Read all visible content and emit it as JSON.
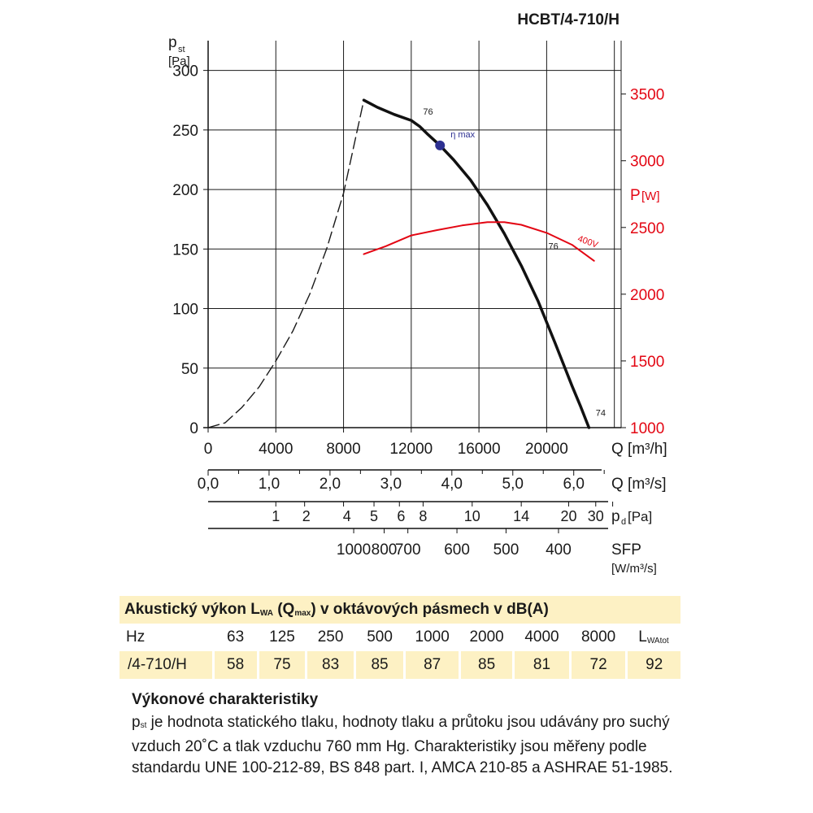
{
  "chart_data": {
    "type": "line",
    "title": "HCBT/4-710/H",
    "y_axis_left": {
      "label_main": "p",
      "label_sub": "st",
      "unit": "[Pa]",
      "ylim": [
        0,
        325
      ],
      "ticks": [
        0,
        50,
        100,
        150,
        200,
        250,
        300
      ],
      "tick_labels": [
        "0",
        "50",
        "100",
        "150",
        "200",
        "250",
        "300"
      ]
    },
    "y_axis_right": {
      "label_main": "P",
      "unit": "[W]",
      "color": "#e30613",
      "ylim": [
        1000,
        3900
      ],
      "ticks": [
        1000,
        1500,
        2000,
        2500,
        3000,
        3500
      ],
      "tick_labels": [
        "1000",
        "1500",
        "2000",
        "2500",
        "3000",
        "3500"
      ]
    },
    "x_axis": {
      "label": "Q [m³/h]",
      "xlim": [
        0,
        24400
      ],
      "ticks": [
        0,
        4000,
        8000,
        12000,
        16000,
        20000
      ],
      "tick_labels": [
        "0",
        "4000",
        "8000",
        "12000",
        "16000",
        "20000"
      ],
      "grid_lines": [
        0,
        4000,
        8000,
        12000,
        16000,
        20000,
        24000
      ]
    },
    "secondary_x_scales": [
      {
        "label": "Q [m³/s]",
        "ticks": [
          0,
          3600,
          7200,
          10800,
          14400,
          18000,
          21600
        ],
        "tick_labels": [
          "0,0",
          "1,0",
          "2,0",
          "3,0",
          "4,0",
          "5,0",
          "6,0"
        ],
        "minor_ticks": [
          1800,
          5400,
          9000,
          12600,
          16200,
          19800,
          23400
        ]
      },
      {
        "label": "p",
        "label_sub": "d",
        "unit": "[Pa]",
        "ticks": [
          4000,
          5700,
          8000,
          9800,
          11300,
          12700,
          15600,
          18500,
          21300,
          22900,
          23900
        ],
        "tick_labels": [
          "1",
          "2",
          "4",
          "5",
          "6",
          "8",
          "10",
          "14",
          "20",
          "30",
          ""
        ],
        "label_positions": [
          4000,
          5800,
          8200,
          9800,
          11400,
          12700,
          15600,
          18500,
          21300,
          22900
        ]
      },
      {
        "label": "SFP",
        "unit": "[W/m³/s]",
        "ticks": [
          8600,
          10400,
          11800,
          14700,
          17600,
          20700
        ],
        "tick_labels": [
          "1000",
          "800",
          "700",
          "600",
          "500",
          "400"
        ]
      }
    ],
    "series": [
      {
        "axis": "left",
        "style": "dashed",
        "color": "#1a1a1a",
        "x": [
          0,
          1000,
          2000,
          3000,
          4000,
          5000,
          6000,
          7000,
          8000,
          9200
        ],
        "y": [
          0,
          4,
          17,
          34,
          56,
          81,
          112,
          150,
          197,
          275
        ]
      },
      {
        "axis": "left",
        "style": "solid",
        "color": "#111111",
        "x": [
          9200,
          10000,
          11000,
          12000,
          12500,
          13000,
          13700,
          14500,
          15500,
          16500,
          17500,
          18500,
          19500,
          20500,
          21500,
          22000,
          22500
        ],
        "y": [
          275,
          269,
          263,
          258,
          253,
          246,
          237,
          225,
          208,
          187,
          163,
          136,
          106,
          71,
          35,
          18,
          0
        ]
      },
      {
        "axis": "right",
        "style": "solid",
        "color": "#e30613",
        "name": "400V",
        "x": [
          9200,
          10500,
          12000,
          13500,
          15000,
          16500,
          17500,
          18500,
          20000,
          21500,
          22800
        ],
        "y": [
          2300,
          2360,
          2440,
          2480,
          2515,
          2540,
          2540,
          2520,
          2460,
          2370,
          2250
        ]
      }
    ],
    "points": [
      {
        "x": 13700,
        "y": 237,
        "label": "η max",
        "color": "#2e3192"
      }
    ],
    "annotations": [
      {
        "text": "76",
        "x": 12700,
        "y": 263
      },
      {
        "text": "76",
        "x": 20100,
        "y": 150
      },
      {
        "text": "74",
        "x": 22900,
        "y": 10
      },
      {
        "text": "400V",
        "x": 21800,
        "y": 2400
      }
    ]
  },
  "acoustic": {
    "title_a": "Akustický výkon L",
    "title_sub1": "WA",
    "title_b": " (Q",
    "title_sub2": "max",
    "title_c": ") v oktávových pásmech v dB(A)",
    "hz_label": "Hz",
    "frequencies": [
      "63",
      "125",
      "250",
      "500",
      "1000",
      "2000",
      "4000",
      "8000"
    ],
    "total_label": "L",
    "total_sub": "WAtot",
    "model_label": "/4-710/H",
    "values": [
      "58",
      "75",
      "83",
      "85",
      "87",
      "85",
      "81",
      "72"
    ],
    "total_value": "92"
  },
  "notes": {
    "title": "Výkonové charakteristiky",
    "p_label": "p",
    "p_sub": "st",
    "text": " je hodnota statického tlaku, hodnoty tlaku a průtoku jsou udávány pro suchý vzduch 20˚C a tlak vzduchu 760 mm Hg. Charakteristiky jsou měřeny podle standardu UNE 100-212-89, BS 848 part. I, AMCA 210-85 a ASHRAE 51-1985."
  }
}
